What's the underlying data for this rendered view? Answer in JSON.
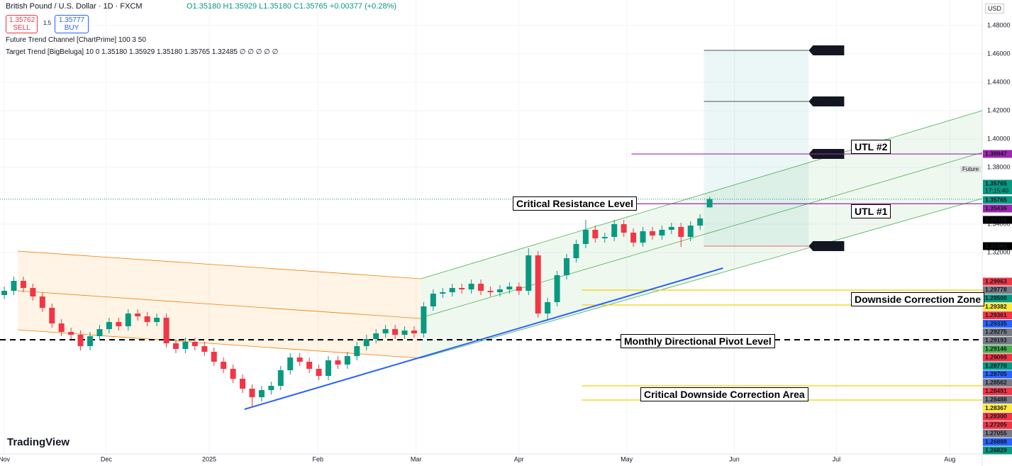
{
  "header": {
    "symbol": "British Pound / U.S. Dollar · 1D · FXCM",
    "ohlc_text": "O1.35180 H1.35929 L1.35180 C1.35765 +0.00377 (+0.28%)",
    "sell_price": "1.35762",
    "sell": "SELL",
    "spread": "1.5",
    "buy_price": "1.35777",
    "buy": "BUY",
    "indicator_1": "Future Trend Channel [ChartPrime] 100 3 50",
    "indicator_2": "Target Trend [BigBeluga] 10 0 1.35180 1.35929 1.35180 1.35765 1.32485 ∅ ∅ ∅ ∅ ∅",
    "currency": "USD",
    "brand": "TradingView",
    "countdown": "17:15:40",
    "future_label": "Future"
  },
  "chart_data": {
    "type": "candlestick",
    "up_color": "#089981",
    "down_color": "#f23645",
    "xlim": [
      -0.45,
      102.6
    ],
    "ylim": [
      1.178,
      1.498
    ],
    "grid": true,
    "xticks": [
      {
        "value": 0,
        "label": "Nov"
      },
      {
        "value": 10.7,
        "label": "Dec"
      },
      {
        "value": 21.5,
        "label": "2025"
      },
      {
        "value": 32.9,
        "label": "Feb"
      },
      {
        "value": 43.2,
        "label": "Mar"
      },
      {
        "value": 54,
        "label": "Apr"
      },
      {
        "value": 65.3,
        "label": "May"
      },
      {
        "value": 76.6,
        "label": "Jun"
      },
      {
        "value": 87.3,
        "label": "Jul"
      },
      {
        "value": 99.2,
        "label": "Aug"
      }
    ],
    "yticks": [
      {
        "value": 1.48,
        "label": "1.48000"
      },
      {
        "value": 1.46,
        "label": "1.46000"
      },
      {
        "value": 1.44,
        "label": "1.44000"
      },
      {
        "value": 1.42,
        "label": "1.42000"
      },
      {
        "value": 1.4,
        "label": "1.40000"
      },
      {
        "value": 1.38,
        "label": "1.38000"
      },
      {
        "value": 1.34,
        "label": "1.34000"
      },
      {
        "value": 1.32,
        "label": "1.32000"
      }
    ],
    "ohlc": [
      [
        1.29,
        1.296,
        1.287,
        1.293
      ],
      [
        1.293,
        1.303,
        1.29,
        1.3
      ],
      [
        1.3,
        1.303,
        1.292,
        1.295
      ],
      [
        1.295,
        1.298,
        1.286,
        1.289
      ],
      [
        1.289,
        1.292,
        1.278,
        1.281
      ],
      [
        1.281,
        1.284,
        1.267,
        1.27
      ],
      [
        1.27,
        1.273,
        1.261,
        1.264
      ],
      [
        1.264,
        1.267,
        1.259,
        1.262
      ],
      [
        1.262,
        1.265,
        1.251,
        1.254
      ],
      [
        1.254,
        1.264,
        1.251,
        1.261
      ],
      [
        1.261,
        1.269,
        1.258,
        1.266
      ],
      [
        1.266,
        1.274,
        1.263,
        1.271
      ],
      [
        1.271,
        1.274,
        1.265,
        1.268
      ],
      [
        1.268,
        1.28,
        1.265,
        1.277
      ],
      [
        1.277,
        1.28,
        1.272,
        1.275
      ],
      [
        1.275,
        1.278,
        1.268,
        1.271
      ],
      [
        1.271,
        1.277,
        1.268,
        1.274
      ],
      [
        1.274,
        1.277,
        1.253,
        1.256
      ],
      [
        1.256,
        1.259,
        1.249,
        1.252
      ],
      [
        1.252,
        1.26,
        1.249,
        1.257
      ],
      [
        1.257,
        1.26,
        1.251,
        1.254
      ],
      [
        1.254,
        1.257,
        1.247,
        1.25
      ],
      [
        1.25,
        1.253,
        1.24,
        1.243
      ],
      [
        1.243,
        1.246,
        1.235,
        1.238
      ],
      [
        1.238,
        1.241,
        1.228,
        1.231
      ],
      [
        1.231,
        1.234,
        1.221,
        1.224
      ],
      [
        1.224,
        1.227,
        1.211,
        1.218
      ],
      [
        1.218,
        1.226,
        1.215,
        1.223
      ],
      [
        1.223,
        1.229,
        1.22,
        1.226
      ],
      [
        1.226,
        1.24,
        1.223,
        1.237
      ],
      [
        1.237,
        1.249,
        1.234,
        1.246
      ],
      [
        1.246,
        1.249,
        1.24,
        1.243
      ],
      [
        1.243,
        1.246,
        1.235,
        1.238
      ],
      [
        1.238,
        1.241,
        1.23,
        1.233
      ],
      [
        1.233,
        1.247,
        1.23,
        1.244
      ],
      [
        1.244,
        1.247,
        1.238,
        1.241
      ],
      [
        1.241,
        1.25,
        1.238,
        1.247
      ],
      [
        1.247,
        1.257,
        1.244,
        1.254
      ],
      [
        1.254,
        1.262,
        1.251,
        1.259
      ],
      [
        1.259,
        1.266,
        1.256,
        1.263
      ],
      [
        1.263,
        1.269,
        1.26,
        1.266
      ],
      [
        1.266,
        1.269,
        1.259,
        1.262
      ],
      [
        1.262,
        1.268,
        1.259,
        1.265
      ],
      [
        1.265,
        1.268,
        1.26,
        1.263
      ],
      [
        1.263,
        1.285,
        1.26,
        1.282
      ],
      [
        1.282,
        1.294,
        1.279,
        1.291
      ],
      [
        1.291,
        1.295,
        1.288,
        1.292
      ],
      [
        1.292,
        1.298,
        1.289,
        1.295
      ],
      [
        1.295,
        1.298,
        1.291,
        1.294
      ],
      [
        1.294,
        1.301,
        1.291,
        1.298
      ],
      [
        1.298,
        1.301,
        1.29,
        1.293
      ],
      [
        1.293,
        1.296,
        1.289,
        1.292
      ],
      [
        1.292,
        1.297,
        1.289,
        1.294
      ],
      [
        1.294,
        1.299,
        1.291,
        1.296
      ],
      [
        1.296,
        1.299,
        1.29,
        1.293
      ],
      [
        1.293,
        1.323,
        1.29,
        1.318
      ],
      [
        1.318,
        1.321,
        1.274,
        1.277
      ],
      [
        1.277,
        1.288,
        1.272,
        1.285
      ],
      [
        1.285,
        1.307,
        1.282,
        1.304
      ],
      [
        1.304,
        1.319,
        1.301,
        1.316
      ],
      [
        1.316,
        1.329,
        1.313,
        1.326
      ],
      [
        1.326,
        1.343,
        1.323,
        1.336
      ],
      [
        1.336,
        1.339,
        1.327,
        1.33
      ],
      [
        1.33,
        1.334,
        1.327,
        1.331
      ],
      [
        1.331,
        1.343,
        1.328,
        1.34
      ],
      [
        1.34,
        1.343,
        1.331,
        1.334
      ],
      [
        1.334,
        1.337,
        1.324,
        1.327
      ],
      [
        1.327,
        1.338,
        1.324,
        1.335
      ],
      [
        1.335,
        1.338,
        1.329,
        1.332
      ],
      [
        1.332,
        1.339,
        1.329,
        1.336
      ],
      [
        1.336,
        1.341,
        1.333,
        1.338
      ],
      [
        1.338,
        1.341,
        1.324,
        1.331
      ],
      [
        1.331,
        1.342,
        1.328,
        1.339
      ],
      [
        1.339,
        1.347,
        1.336,
        1.344
      ],
      [
        1.3518,
        1.35929,
        1.3518,
        1.35765
      ]
    ],
    "channels": [
      {
        "color": "#f57c00",
        "fill": "rgba(255,152,0,0.10)",
        "lines": [
          [
            1.4,
            1.321,
            43.7,
            1.3015
          ],
          [
            1.4,
            1.293,
            43.7,
            1.2735
          ],
          [
            1.4,
            1.2655,
            43.7,
            1.2455
          ]
        ]
      },
      {
        "color": "#4caf50",
        "fill": "rgba(76,175,80,0.09)",
        "lines": [
          [
            43.7,
            1.3015,
            102.6,
            1.42
          ],
          [
            43.7,
            1.274,
            102.6,
            1.3905
          ],
          [
            43.7,
            1.2455,
            102.6,
            1.358
          ]
        ]
      }
    ],
    "trendline": {
      "color": "#2962ff",
      "points": [
        25.2,
        1.2095,
        75.4,
        1.309
      ]
    },
    "levels": [
      {
        "value": 1.38947,
        "color": "#9c27b0",
        "from": 65.8
      },
      {
        "value": 1.35436,
        "color": "#9c27b0",
        "from": 65.8
      },
      {
        "value": 1.2585,
        "color": "#000000",
        "from": -0.45,
        "dashed": true
      },
      {
        "value": 1.2935,
        "color": "#f5d000",
        "from": 60.6
      },
      {
        "value": 1.283,
        "color": "#f5d000",
        "from": 60.6
      },
      {
        "value": 1.226,
        "color": "#f5d000",
        "from": 60.6
      },
      {
        "value": 1.216,
        "color": "#f5d000",
        "from": 60.6
      }
    ],
    "targets": {
      "from": 73.4,
      "to": 84.4,
      "entry": {
        "label": "1.32",
        "value": 1.3245
      },
      "levels": [
        {
          "label": "3 - 1.46",
          "value": 1.4625
        },
        {
          "label": "2 - 1.43",
          "value": 1.4265
        },
        {
          "label": "1 - 1.39",
          "value": 1.3895
        }
      ]
    },
    "annotations": [
      "Critical Resistance Level",
      "UTL #2",
      "UTL #1",
      "Downside Correction Zone",
      "Monthly Directional Pivot Level",
      "Critical Downside Correction Area"
    ],
    "axis_labels": [
      {
        "label": "1.38947",
        "color": "#9c27b0"
      },
      {
        "label": "1.35765",
        "color": "#089981"
      },
      {
        "label": "1.35765",
        "color": "#089981"
      },
      {
        "label": "1.35436",
        "color": "#9c27b0"
      },
      {
        "label": "1.34374",
        "color": "#000000"
      },
      {
        "label": "1.32485",
        "color": "#000000"
      },
      {
        "label": "1.29963",
        "color": "#f23645"
      },
      {
        "label": "1.29778",
        "color": "#787b86"
      },
      {
        "label": "1.29500",
        "color": "#089981"
      },
      {
        "label": "1.29382",
        "color": "#ffeb3b"
      },
      {
        "label": "1.29361",
        "color": "#f23645"
      },
      {
        "label": "1.29335",
        "color": "#2962ff"
      },
      {
        "label": "1.29275",
        "color": "#787b86"
      },
      {
        "label": "1.29193",
        "color": "#787b86"
      },
      {
        "label": "1.29146",
        "color": "#4caf50"
      },
      {
        "label": "1.29099",
        "color": "#f23645"
      },
      {
        "label": "1.28770",
        "color": "#089981"
      },
      {
        "label": "1.28705",
        "color": "#2962ff"
      },
      {
        "label": "1.28562",
        "color": "#787b86"
      },
      {
        "label": "1.28491",
        "color": "#f23645"
      },
      {
        "label": "1.28488",
        "color": "#787b86"
      },
      {
        "label": "1.28367",
        "color": "#ffeb3b"
      },
      {
        "label": "1.28300",
        "color": "#f23645"
      },
      {
        "label": "1.27205",
        "color": "#f23645"
      },
      {
        "label": "1.27055",
        "color": "#787b86"
      },
      {
        "label": "1.26888",
        "color": "#2962ff"
      },
      {
        "label": "1.26829",
        "color": "#089981"
      }
    ]
  }
}
